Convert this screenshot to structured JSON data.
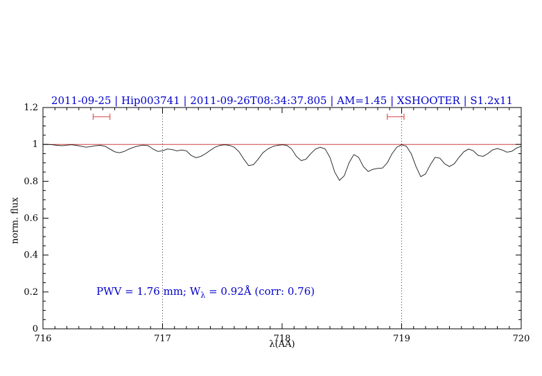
{
  "colors": {
    "title": "#0000cc",
    "annotation": "#0000cc",
    "spectrum": "#1a1a1a",
    "continuum": "#cc2222",
    "marker": "#dd5555",
    "axis": "#000000",
    "dotted_line": "#333333",
    "background": "#ffffff"
  },
  "chart_data": {
    "type": "line",
    "title": "2011-09-25 | Hip003741 | 2011-09-26T08:34:37.805 | AM=1.45 | XSHOOTER | S1.2x11",
    "xlabel": "λ(AA)",
    "ylabel": "norm. flux",
    "xlim": [
      716,
      720
    ],
    "ylim": [
      0,
      1.2
    ],
    "x_major_ticks": [
      716,
      717,
      718,
      719,
      720
    ],
    "x_tick_labels": [
      "716",
      "717",
      "718",
      "719",
      "720"
    ],
    "x_minor_step": 0.1,
    "y_major_ticks": [
      0,
      0.2,
      0.4,
      0.6,
      0.8,
      1,
      1.2
    ],
    "y_tick_labels": [
      "0",
      "0.2",
      "0.4",
      "0.6",
      "0.8",
      "1",
      "1.2"
    ],
    "y_minor_step": 0.05,
    "grid": false,
    "legend": "none",
    "dotted_vlines": [
      717,
      719
    ],
    "continuum_line": {
      "y": 1.0
    },
    "range_markers": [
      {
        "x1": 716.42,
        "x2": 716.56,
        "y": 1.15
      },
      {
        "x1": 718.88,
        "x2": 719.02,
        "y": 1.15
      }
    ],
    "annotation": {
      "prefix": "PWV = 1.76 mm; W",
      "sub": "λ",
      "suffix": " = 0.92Å (corr: 0.76)",
      "x": 716.45,
      "y": 0.2
    },
    "series": [
      {
        "name": "observed normalized spectrum",
        "x_start": 716.0,
        "x_step": 0.04,
        "flux": [
          1.0,
          1.0,
          0.998,
          0.995,
          0.993,
          0.996,
          0.998,
          0.995,
          0.99,
          0.985,
          0.988,
          0.993,
          0.995,
          0.99,
          0.975,
          0.96,
          0.955,
          0.962,
          0.975,
          0.985,
          0.992,
          0.996,
          0.993,
          0.975,
          0.962,
          0.965,
          0.975,
          0.972,
          0.965,
          0.97,
          0.965,
          0.94,
          0.928,
          0.935,
          0.95,
          0.968,
          0.985,
          0.995,
          0.998,
          0.995,
          0.985,
          0.96,
          0.92,
          0.885,
          0.89,
          0.92,
          0.955,
          0.975,
          0.988,
          0.995,
          0.998,
          0.995,
          0.975,
          0.935,
          0.912,
          0.92,
          0.95,
          0.975,
          0.985,
          0.975,
          0.93,
          0.85,
          0.805,
          0.83,
          0.9,
          0.945,
          0.93,
          0.88,
          0.853,
          0.865,
          0.87,
          0.872,
          0.9,
          0.95,
          0.985,
          0.998,
          0.99,
          0.95,
          0.88,
          0.825,
          0.84,
          0.89,
          0.93,
          0.925,
          0.895,
          0.88,
          0.895,
          0.93,
          0.96,
          0.975,
          0.965,
          0.94,
          0.935,
          0.95,
          0.97,
          0.978,
          0.97,
          0.958,
          0.962,
          0.98,
          0.99
        ]
      }
    ]
  }
}
